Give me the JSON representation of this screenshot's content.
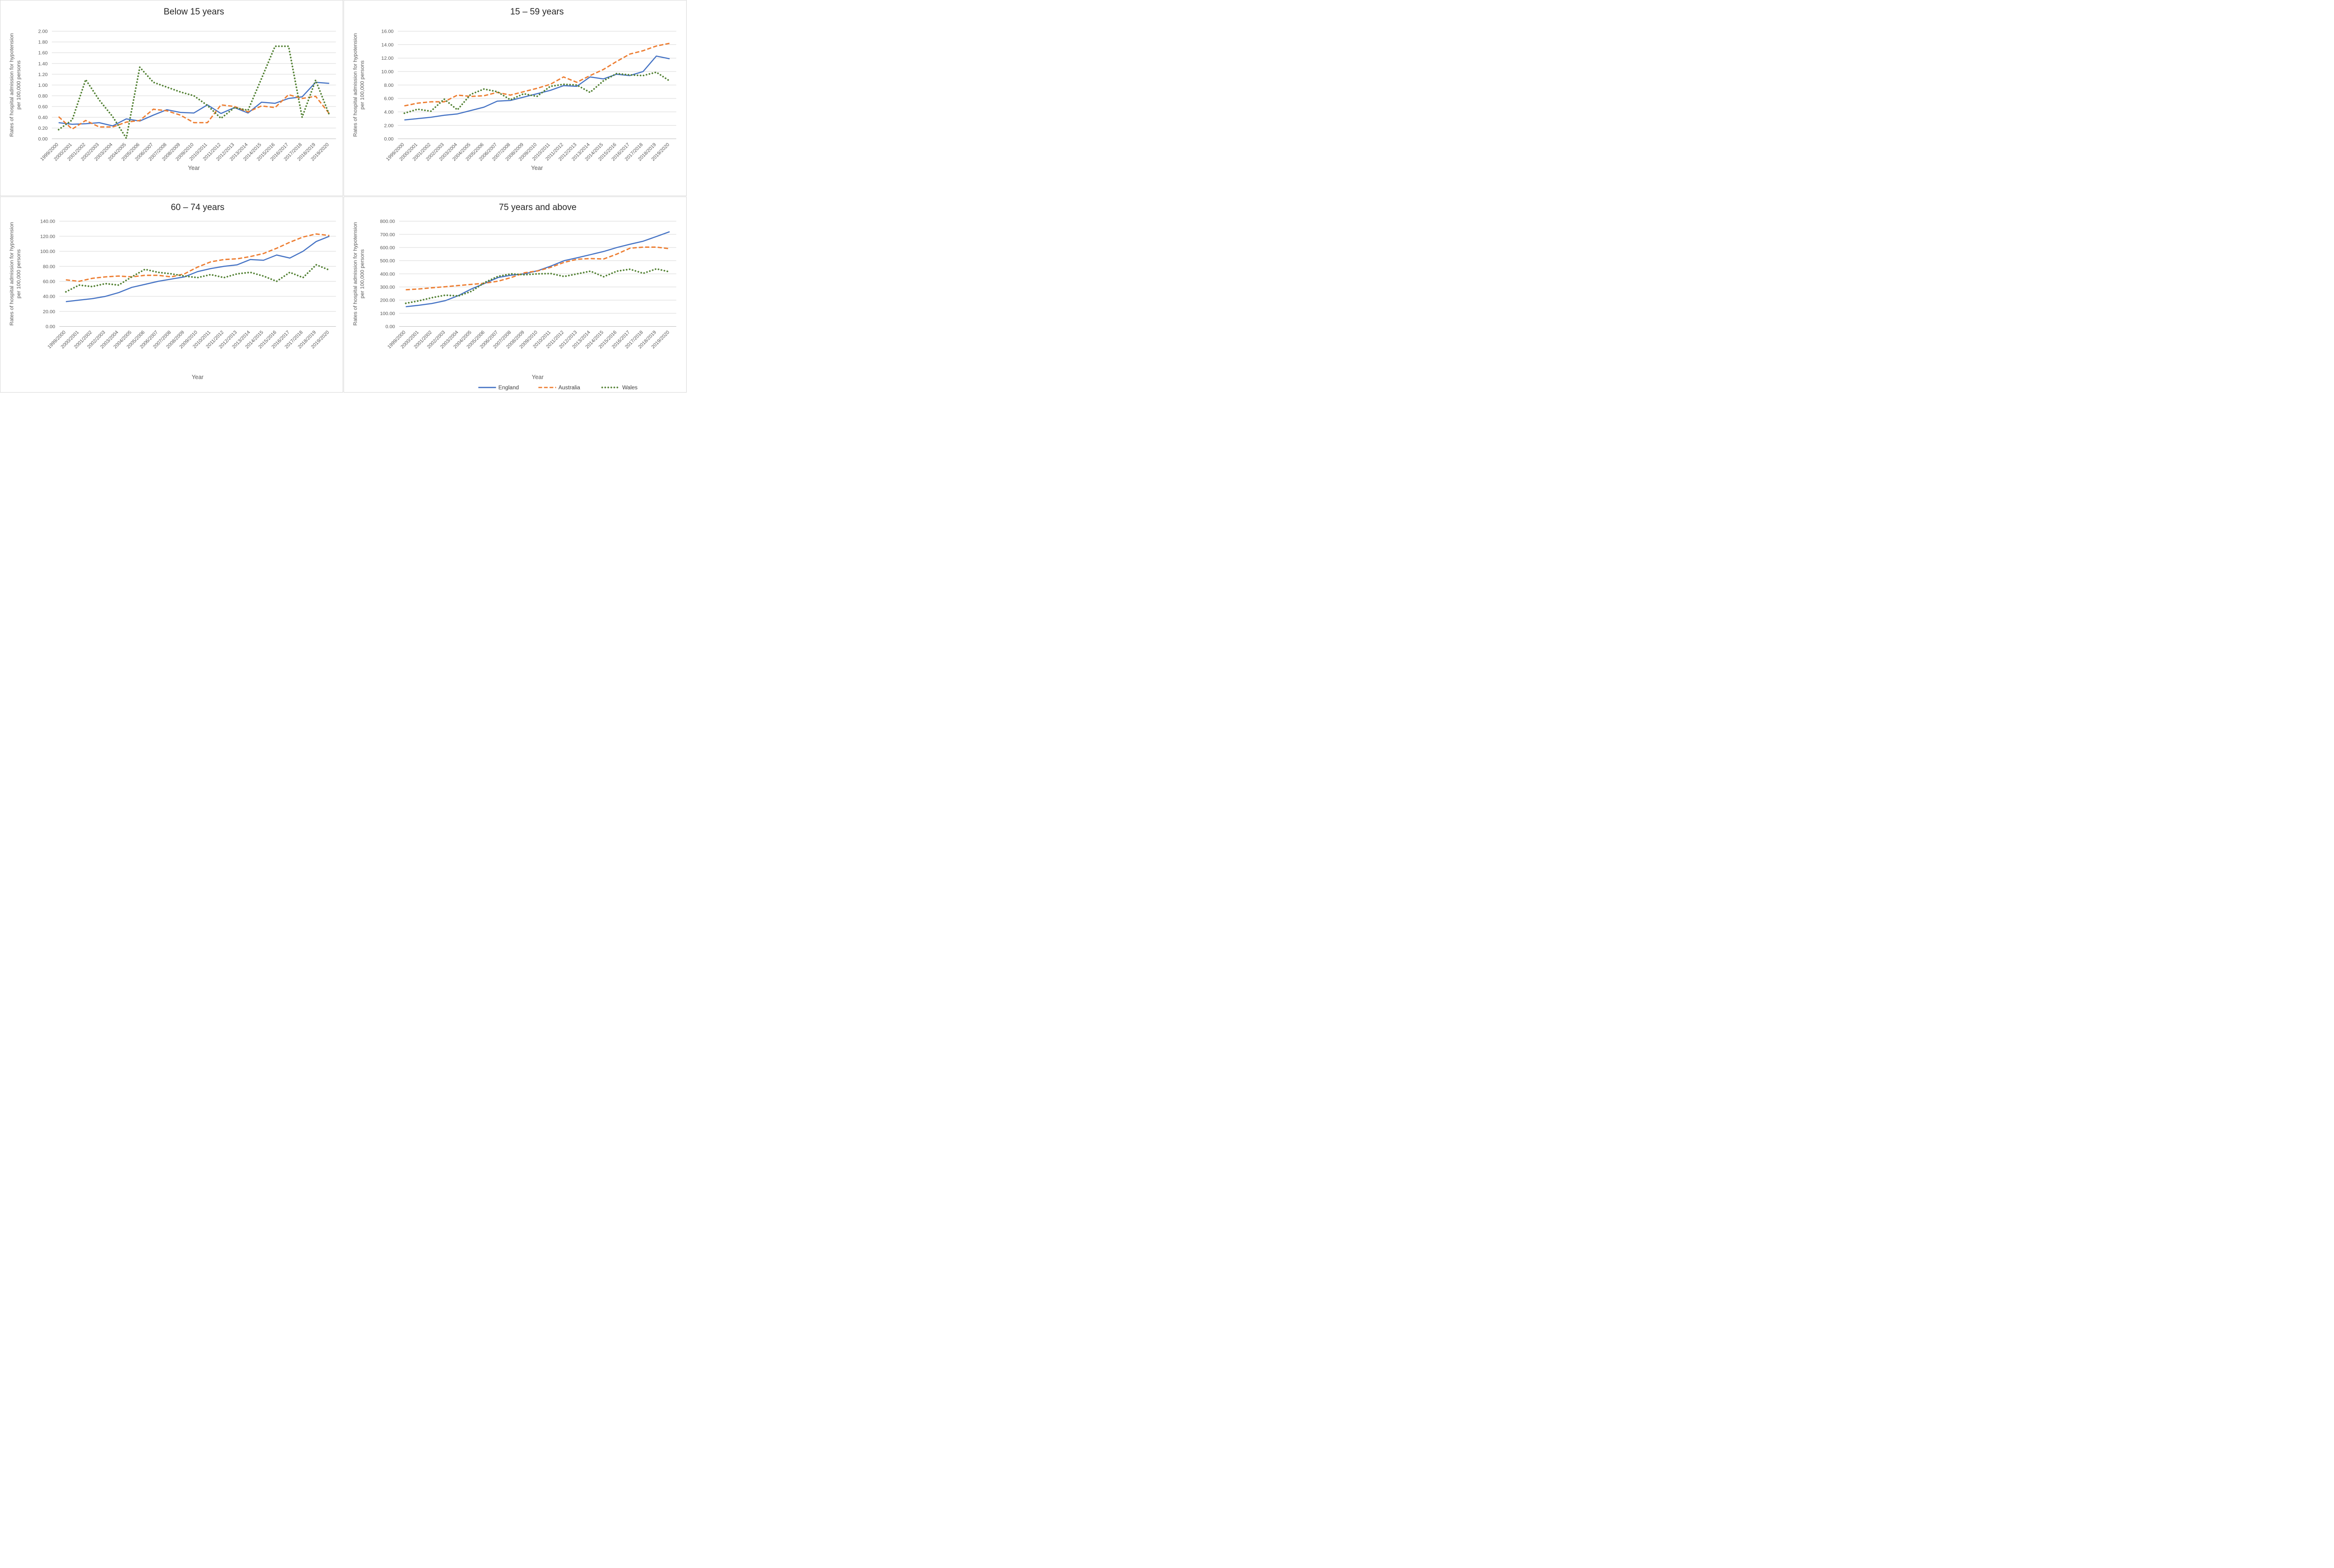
{
  "page": {
    "background": "#ffffff",
    "grid_color": "#d9d9d9",
    "axis_text_color": "#595959",
    "title_color": "#262626"
  },
  "legend": {
    "position": "bottom-right",
    "items": [
      {
        "label": "England",
        "color": "#4472c4",
        "style": "solid"
      },
      {
        "label": "Australia",
        "color": "#ed7d31",
        "style": "dashed"
      },
      {
        "label": "Wales",
        "color": "#548235",
        "style": "dotted"
      }
    ]
  },
  "chart_data": [
    {
      "type": "line",
      "title": "Below 15 years",
      "xlabel": "Year",
      "ylabel_line1": "Rates of hospital admission for hypotension",
      "ylabel_line2": "per 100,000 persons",
      "ylim": [
        0,
        2.0
      ],
      "ystep": 0.2,
      "tick_decimals": 2,
      "grid": true,
      "categories": [
        "1999/2000",
        "2000/2001",
        "2001/2002",
        "2002/2003",
        "2003/2004",
        "2004/2005",
        "2005/2006",
        "2006/2007",
        "2007/2008",
        "2008/2009",
        "2009/2010",
        "2010/2011",
        "2011/2012",
        "2012/2013",
        "2013/2014",
        "2014/2015",
        "2015/2016",
        "2016/2017",
        "2017/2018",
        "2018/2019",
        "2019/2020"
      ],
      "series": [
        {
          "name": "England",
          "color": "#4472c4",
          "style": "solid",
          "values": [
            0.3,
            0.27,
            0.28,
            0.3,
            0.24,
            0.37,
            0.33,
            0.44,
            0.54,
            0.49,
            0.48,
            0.63,
            0.47,
            0.58,
            0.48,
            0.68,
            0.66,
            0.75,
            0.78,
            1.05,
            1.03
          ]
        },
        {
          "name": "Australia",
          "color": "#ed7d31",
          "style": "dashed",
          "values": [
            0.41,
            0.18,
            0.34,
            0.22,
            0.22,
            0.31,
            0.34,
            0.55,
            0.52,
            0.44,
            0.3,
            0.3,
            0.63,
            0.6,
            0.5,
            0.61,
            0.58,
            0.82,
            0.75,
            0.79,
            0.47
          ]
        },
        {
          "name": "Wales",
          "color": "#548235",
          "style": "dotted",
          "values": [
            0.17,
            0.35,
            1.1,
            0.72,
            0.41,
            0.01,
            1.33,
            1.05,
            0.96,
            0.87,
            0.8,
            0.62,
            0.38,
            0.58,
            0.53,
            1.12,
            1.72,
            1.72,
            0.4,
            1.09,
            0.45
          ]
        }
      ]
    },
    {
      "type": "line",
      "title": "15 – 59 years",
      "xlabel": "Year",
      "ylabel_line1": "Rates of hospital admission for hypotension",
      "ylabel_line2": "per 100,000 persons",
      "ylim": [
        0,
        16.0
      ],
      "ystep": 2.0,
      "tick_decimals": 2,
      "grid": true,
      "categories": [
        "1999/2000",
        "2000/2001",
        "2001/2002",
        "2002/2003",
        "2003/2004",
        "2004/2005",
        "2005/2006",
        "2006/2007",
        "2007/2008",
        "2008/2009",
        "2009/2010",
        "2010/2011",
        "2011/2012",
        "2012/2013",
        "2013/2014",
        "2014/2015",
        "2015/2016",
        "2016/2017",
        "2017/2018",
        "2018/2019",
        "2019/2020"
      ],
      "series": [
        {
          "name": "England",
          "color": "#4472c4",
          "style": "solid",
          "values": [
            2.8,
            3.0,
            3.2,
            3.5,
            3.7,
            4.2,
            4.7,
            5.6,
            5.7,
            6.2,
            6.7,
            7.2,
            7.9,
            7.8,
            9.2,
            8.9,
            9.6,
            9.4,
            10.0,
            12.3,
            11.9
          ]
        },
        {
          "name": "Australia",
          "color": "#ed7d31",
          "style": "dashed",
          "values": [
            4.9,
            5.3,
            5.5,
            5.5,
            6.5,
            6.3,
            6.4,
            6.9,
            6.5,
            7.0,
            7.5,
            8.1,
            9.2,
            8.4,
            9.4,
            10.3,
            11.5,
            12.6,
            13.1,
            13.8,
            14.2
          ]
        },
        {
          "name": "Wales",
          "color": "#548235",
          "style": "dotted",
          "values": [
            3.8,
            4.4,
            4.1,
            5.9,
            4.3,
            6.6,
            7.4,
            7.0,
            5.8,
            6.7,
            6.3,
            7.8,
            8.1,
            8.0,
            6.9,
            8.6,
            9.7,
            9.5,
            9.4,
            9.9,
            8.6
          ]
        }
      ]
    },
    {
      "type": "line",
      "title": "60 – 74 years",
      "xlabel": "Year",
      "ylabel_line1": "Rates of hospital admission for hypotension",
      "ylabel_line2": "per 100,000 persons",
      "ylim": [
        0,
        140.0
      ],
      "ystep": 20.0,
      "tick_decimals": 2,
      "grid": true,
      "categories": [
        "1999/2000",
        "2000/2001",
        "2001/2002",
        "2002/2003",
        "2003/2004",
        "2004/2005",
        "2005/2006",
        "2006/2007",
        "2007/2008",
        "2008/2009",
        "2009/2010",
        "2010/2011",
        "2011/2012",
        "2012/2013",
        "2013/2014",
        "2014/2015",
        "2015/2016",
        "2016/2017",
        "2017/2018",
        "2018/2019",
        "2019/2020"
      ],
      "series": [
        {
          "name": "England",
          "color": "#4472c4",
          "style": "solid",
          "values": [
            33,
            35,
            37,
            40,
            45,
            52,
            56,
            60,
            63,
            66,
            73,
            77,
            80,
            82,
            89,
            88,
            95,
            91,
            100,
            113,
            120
          ]
        },
        {
          "name": "Australia",
          "color": "#ed7d31",
          "style": "dashed",
          "values": [
            62,
            60,
            64,
            66,
            67,
            66,
            68,
            68,
            66,
            70,
            79,
            86,
            89,
            90,
            93,
            97,
            104,
            112,
            119,
            123,
            121
          ]
        },
        {
          "name": "Wales",
          "color": "#548235",
          "style": "dotted",
          "values": [
            46,
            55,
            53,
            57,
            55,
            66,
            76,
            72,
            70,
            67,
            65,
            69,
            65,
            70,
            72,
            67,
            60,
            72,
            65,
            82,
            75
          ]
        }
      ]
    },
    {
      "type": "line",
      "title": "75 years and above",
      "xlabel": "Year",
      "ylabel_line1": "Rates of hospital admission for hypotension",
      "ylabel_line2": "per 100,000 persons",
      "ylim": [
        0,
        800.0
      ],
      "ystep": 100.0,
      "tick_decimals": 2,
      "grid": true,
      "show_legend": true,
      "categories": [
        "1999/2000",
        "2000/2001",
        "2001/2002",
        "2002/2003",
        "2003/2004",
        "2004/2005",
        "2005/2006",
        "2006/2007",
        "2007/2008",
        "2008/2009",
        "2009/2010",
        "2010/2011",
        "2011/2012",
        "2012/2013",
        "2013/2014",
        "2014/2015",
        "2015/2016",
        "2016/2017",
        "2017/2018",
        "2018/2019",
        "2019/2020"
      ],
      "series": [
        {
          "name": "England",
          "color": "#4472c4",
          "style": "solid",
          "values": [
            150,
            161,
            175,
            196,
            235,
            286,
            328,
            372,
            390,
            400,
            424,
            459,
            500,
            522,
            546,
            570,
            600,
            625,
            648,
            684,
            720
          ]
        },
        {
          "name": "Australia",
          "color": "#ed7d31",
          "style": "dashed",
          "values": [
            279,
            285,
            294,
            302,
            311,
            320,
            329,
            344,
            372,
            408,
            422,
            450,
            487,
            511,
            516,
            513,
            550,
            595,
            603,
            603,
            591
          ]
        },
        {
          "name": "Wales",
          "color": "#548235",
          "style": "dotted",
          "values": [
            176,
            195,
            219,
            238,
            232,
            268,
            336,
            381,
            400,
            393,
            400,
            402,
            380,
            400,
            420,
            378,
            420,
            435,
            404,
            438,
            415
          ]
        }
      ]
    }
  ]
}
